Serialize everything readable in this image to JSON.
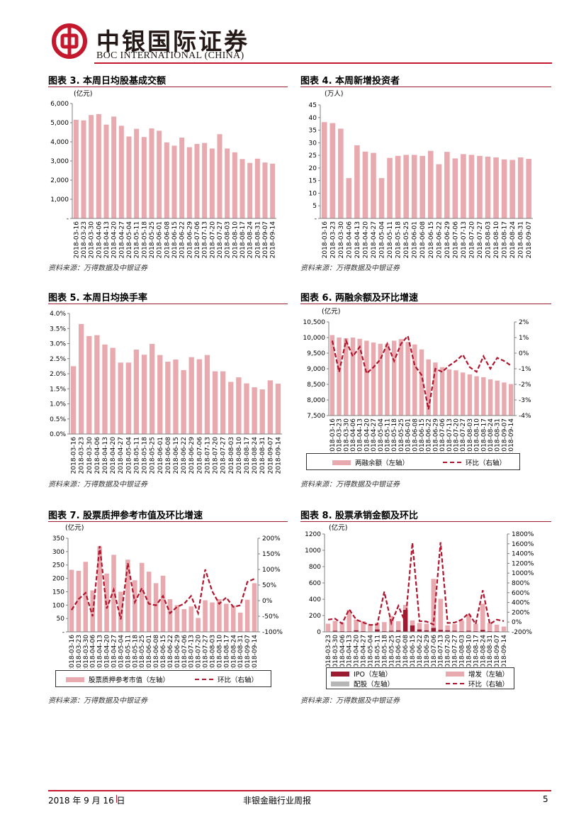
{
  "header": {
    "brand_cn": "中银国际证券",
    "brand_en": "BOC INTERNATIONAL (CHINA)",
    "logo_color": "#c3182d"
  },
  "source_note": "资料来源：万得数据及中银证券",
  "colors": {
    "bar": "#e9aaaf",
    "bar_dark": "#9b1b30",
    "bar_gray": "#b7b7b7",
    "line": "#b0152d",
    "axis": "#7f7f7f"
  },
  "charts": [
    {
      "type": "bar",
      "title": "图表 3. 本周日均股基成交额",
      "unit": "(亿元)",
      "categories": [
        "2018-03-16",
        "2018-03-23",
        "2018-03-30",
        "2018-04-06",
        "2018-04-13",
        "2018-04-20",
        "2018-04-27",
        "2018-05-04",
        "2018-05-11",
        "2018-05-18",
        "2018-05-25",
        "2018-06-01",
        "2018-06-08",
        "2018-06-15",
        "2018-06-22",
        "2018-06-29",
        "2018-07-06",
        "2018-07-13",
        "2018-07-20",
        "2018-07-27",
        "2018-08-03",
        "2018-08-10",
        "2018-08-17",
        "2018-08-24",
        "2018-08-31",
        "2018-09-07",
        "2018-09-14"
      ],
      "values": [
        5150,
        5120,
        5400,
        5450,
        4900,
        5320,
        4840,
        4280,
        4680,
        4250,
        4700,
        4580,
        3970,
        3800,
        4220,
        3720,
        3890,
        3940,
        3650,
        4400,
        3650,
        3450,
        3100,
        2900,
        3120,
        2920,
        2860
      ],
      "ylim": [
        0,
        6000
      ],
      "yticks": [
        "-",
        "1,000",
        "2,000",
        "3,000",
        "4,000",
        "5,000",
        "6,000"
      ],
      "legend": null
    },
    {
      "type": "bar",
      "title": "图表 4. 本周新增投资者",
      "unit": "(万人)",
      "categories": [
        "2018-03-16",
        "2018-03-23",
        "2018-03-30",
        "2018-04-06",
        "2018-04-13",
        "2018-04-20",
        "2018-04-27",
        "2018-05-04",
        "2018-05-11",
        "2018-05-18",
        "2018-05-25",
        "2018-06-01",
        "2018-06-08",
        "2018-06-15",
        "2018-06-22",
        "2018-06-29",
        "2018-07-06",
        "2018-07-13",
        "2018-07-20",
        "2018-07-27",
        "2018-08-03",
        "2018-08-10",
        "2018-08-17",
        "2018-08-24",
        "2018-08-31",
        "2018-09-07"
      ],
      "values": [
        38.2,
        37.8,
        35.6,
        16.0,
        29.0,
        26.5,
        26.0,
        16.0,
        24.0,
        24.8,
        25.2,
        25.2,
        24.8,
        26.8,
        21.5,
        26.4,
        23.8,
        25.5,
        25.2,
        24.8,
        24.5,
        24.2,
        23.4,
        23.2,
        24.2,
        23.6
      ],
      "ylim": [
        0,
        45
      ],
      "yticks": [
        "-",
        "5",
        "10",
        "15",
        "20",
        "25",
        "30",
        "35",
        "40",
        "45"
      ],
      "legend": null
    },
    {
      "type": "bar",
      "title": "图表 5. 本周日均换手率",
      "unit": "",
      "categories": [
        "2018-03-16",
        "2018-03-23",
        "2018-03-30",
        "2018-04-06",
        "2018-04-13",
        "2018-04-20",
        "2018-04-27",
        "2018-05-04",
        "2018-05-11",
        "2018-05-18",
        "2018-05-25",
        "2018-06-01",
        "2018-06-08",
        "2018-06-15",
        "2018-06-22",
        "2018-06-29",
        "2018-07-06",
        "2018-07-13",
        "2018-07-20",
        "2018-07-27",
        "2018-08-03",
        "2018-08-10",
        "2018-08-17",
        "2018-08-24",
        "2018-08-31",
        "2018-09-07",
        "2018-09-14"
      ],
      "values": [
        2.25,
        3.65,
        3.25,
        3.28,
        2.97,
        2.86,
        2.37,
        2.37,
        2.8,
        2.63,
        2.99,
        2.62,
        2.4,
        2.47,
        2.12,
        2.55,
        2.48,
        2.62,
        2.08,
        2.08,
        1.73,
        1.88,
        1.68,
        1.55,
        1.48,
        1.78,
        1.67
      ],
      "ylim": [
        0,
        4
      ],
      "yticks": [
        "0.0%",
        "0.5%",
        "1.0%",
        "1.5%",
        "2.0%",
        "2.5%",
        "3.0%",
        "3.5%",
        "4.0%"
      ],
      "legend": null
    },
    {
      "type": "bar+line",
      "title": "图表 6. 两融余额及环比增速",
      "unit": "(亿元)",
      "categories": [
        "2018-03-16",
        "2018-03-23",
        "2018-03-30",
        "2018-04-06",
        "2018-04-13",
        "2018-04-20",
        "2018-04-27",
        "2018-05-04",
        "2018-05-11",
        "2018-05-18",
        "2018-05-25",
        "2018-06-01",
        "2018-06-08",
        "2018-06-15",
        "2018-06-22",
        "2018-06-29",
        "2018-07-06",
        "2018-07-13",
        "2018-07-20",
        "2018-07-27",
        "2018-08-03",
        "2018-08-10",
        "2018-08-17",
        "2018-08-24",
        "2018-08-31",
        "2018-09-07",
        "2018-09-14"
      ],
      "bars": [
        10080,
        10000,
        9980,
        10000,
        9960,
        9900,
        9840,
        9800,
        9800,
        9900,
        9950,
        9860,
        9780,
        9620,
        9300,
        9200,
        9050,
        8980,
        8950,
        8880,
        8820,
        8760,
        8730,
        8660,
        8620,
        8560,
        8510
      ],
      "line": [
        0.8,
        -1.2,
        0.8,
        -0.2,
        0.4,
        -1.3,
        -0.9,
        -0.4,
        0.6,
        -0.5,
        0.6,
        1.1,
        -0.8,
        -1.4,
        -3.6,
        -1.0,
        -1.2,
        -0.8,
        -0.5,
        -0.1,
        -0.9,
        -1.2,
        -0.2,
        -1.0,
        -0.3,
        -0.5,
        -0.8
      ],
      "ylim_left": [
        7500,
        10500
      ],
      "yticks_left": [
        "7,500",
        "8,000",
        "8,500",
        "9,000",
        "9,500",
        "10,000",
        "10,500"
      ],
      "ylim_right": [
        -4,
        2
      ],
      "yticks_right": [
        "-4%",
        "-3%",
        "-2%",
        "-1%",
        "0%",
        "1%",
        "2%"
      ],
      "legend": [
        {
          "label": "两融余额（左轴）",
          "kind": "bar",
          "color": "#e9aaaf"
        },
        {
          "label": "环比（右轴）",
          "kind": "line",
          "color": "#b0152d"
        }
      ]
    },
    {
      "type": "bar+line",
      "title": "图表 7. 股票质押参考市值及环比增速",
      "unit": "(亿元)",
      "categories": [
        "2018-03-16",
        "2018-03-23",
        "2018-03-30",
        "2018-04-06",
        "2018-04-13",
        "2018-04-20",
        "2018-04-27",
        "2018-05-04",
        "2018-05-11",
        "2018-05-18",
        "2018-05-25",
        "2018-06-01",
        "2018-06-08",
        "2018-06-15",
        "2018-06-22",
        "2018-06-29",
        "2018-07-06",
        "2018-07-13",
        "2018-07-20",
        "2018-07-27",
        "2018-08-03",
        "2018-08-10",
        "2018-08-17",
        "2018-08-24",
        "2018-08-31",
        "2018-09-07",
        "2018-09-14"
      ],
      "bars": [
        232,
        228,
        262,
        155,
        320,
        218,
        288,
        150,
        270,
        193,
        258,
        225,
        182,
        210,
        122,
        100,
        85,
        95,
        52,
        118,
        110,
        122,
        105,
        98,
        72,
        120,
        182
      ],
      "line": [
        -30,
        5,
        25,
        -50,
        175,
        -25,
        35,
        -60,
        120,
        -5,
        40,
        -10,
        -15,
        15,
        -40,
        -20,
        -10,
        15,
        -40,
        100,
        30,
        -10,
        10,
        -20,
        -15,
        60,
        70
      ],
      "ylim_left": [
        0,
        350
      ],
      "yticks_left": [
        "-",
        "50",
        "100",
        "150",
        "200",
        "250",
        "300",
        "350"
      ],
      "ylim_right": [
        -100,
        200
      ],
      "yticks_right": [
        "-100%",
        "-50%",
        "0%",
        "50%",
        "100%",
        "150%",
        "200%"
      ],
      "legend": [
        {
          "label": "股票质押参考市值（左轴）",
          "kind": "bar",
          "color": "#e9aaaf"
        },
        {
          "label": "环比（右轴）",
          "kind": "line",
          "color": "#b0152d"
        }
      ]
    },
    {
      "type": "stacked-bar+line",
      "title": "图表 8. 股票承销金额及环比",
      "unit": "(亿元)",
      "categories": [
        "2018-03-23",
        "2018-03-30",
        "2018-04-06",
        "2018-04-13",
        "2018-04-20",
        "2018-04-27",
        "2018-05-04",
        "2018-05-11",
        "2018-05-18",
        "2018-05-25",
        "2018-06-01",
        "2018-06-08",
        "2018-06-15",
        "2018-06-22",
        "2018-06-29",
        "2018-07-06",
        "2018-07-13",
        "2018-07-20",
        "2018-07-27",
        "2018-08-03",
        "2018-08-10",
        "2018-08-17",
        "2018-08-24",
        "2018-08-31",
        "2018-09-07",
        "2018-09-14"
      ],
      "ipo": [
        5,
        15,
        10,
        8,
        20,
        10,
        5,
        30,
        10,
        15,
        20,
        270,
        80,
        30,
        20,
        50,
        25,
        20,
        15,
        10,
        15,
        10,
        25,
        10,
        8,
        5
      ],
      "seo": [
        95,
        120,
        100,
        260,
        130,
        120,
        90,
        80,
        110,
        180,
        110,
        60,
        60,
        80,
        80,
        600,
        380,
        60,
        80,
        130,
        200,
        90,
        320,
        100,
        80,
        60
      ],
      "rights": [
        0,
        0,
        0,
        0,
        0,
        0,
        0,
        0,
        0,
        0,
        0,
        0,
        0,
        0,
        0,
        0,
        0,
        0,
        0,
        0,
        0,
        0,
        0,
        0,
        0,
        0
      ],
      "line": [
        50,
        70,
        -30,
        260,
        50,
        -10,
        -60,
        -50,
        620,
        -20,
        330,
        -10,
        1620,
        20,
        10,
        -50,
        1630,
        -20,
        -10,
        50,
        180,
        -40,
        650,
        -40,
        50,
        20
      ],
      "ylim_left": [
        0,
        1200
      ],
      "yticks_left": [
        "0",
        "200",
        "400",
        "600",
        "800",
        "1000",
        "1200"
      ],
      "ylim_right": [
        -200,
        1800
      ],
      "yticks_right": [
        "-200%",
        "0%",
        "200%",
        "400%",
        "600%",
        "800%",
        "1000%",
        "1200%",
        "1400%",
        "1600%",
        "1800%"
      ],
      "legend": [
        {
          "label": "IPO（左轴）",
          "kind": "bar",
          "color": "#9b1b30"
        },
        {
          "label": "增发（左轴）",
          "kind": "bar",
          "color": "#e9aaaf"
        },
        {
          "label": "配股（左轴）",
          "kind": "bar",
          "color": "#b7b7b7"
        },
        {
          "label": "环比（右轴）",
          "kind": "line",
          "color": "#b0152d"
        }
      ]
    }
  ],
  "footer": {
    "date": "2018 年 9 月 16 日",
    "report_type": "非银金融行业周报",
    "page": "5"
  }
}
